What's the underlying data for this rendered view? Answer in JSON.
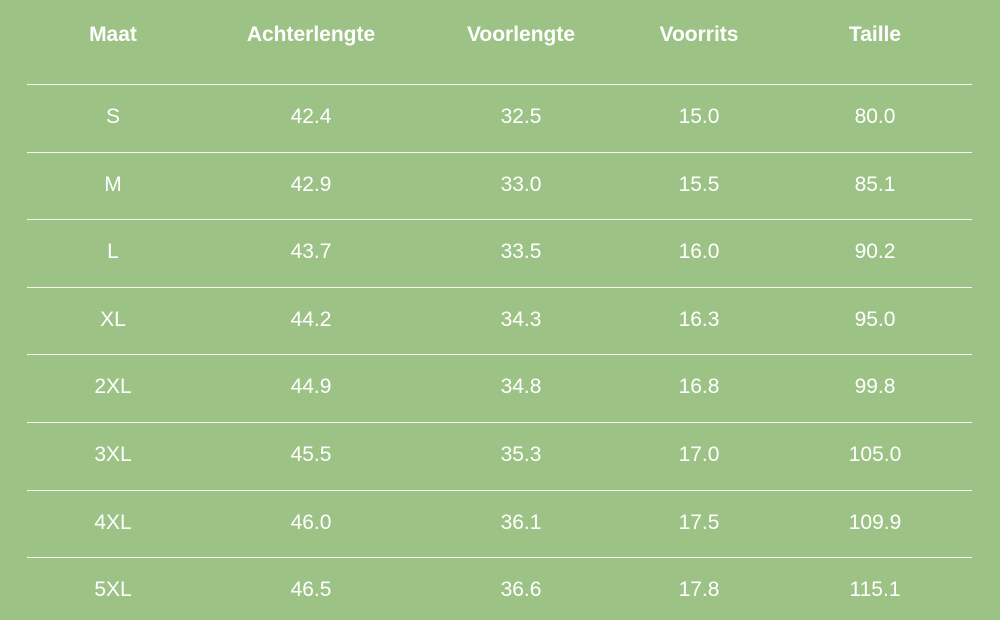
{
  "table": {
    "header": [
      "Maat",
      "Achterlengte",
      "Voorlengte",
      "Voorrits",
      "Taille"
    ],
    "rows": [
      [
        "S",
        "42.4",
        "32.5",
        "15.0",
        "80.0"
      ],
      [
        "M",
        "42.9",
        "33.0",
        "15.5",
        "85.1"
      ],
      [
        "L",
        "43.7",
        "33.5",
        "16.0",
        "90.2"
      ],
      [
        "XL",
        "44.2",
        "34.3",
        "16.3",
        "95.0"
      ],
      [
        "2XL",
        "44.9",
        "34.8",
        "16.8",
        "99.8"
      ],
      [
        "3XL",
        "45.5",
        "35.3",
        "17.0",
        "105.0"
      ],
      [
        "4XL",
        "46.0",
        "36.1",
        "17.5",
        "109.9"
      ],
      [
        "5XL",
        "46.5",
        "36.6",
        "17.8",
        "115.1"
      ]
    ]
  }
}
